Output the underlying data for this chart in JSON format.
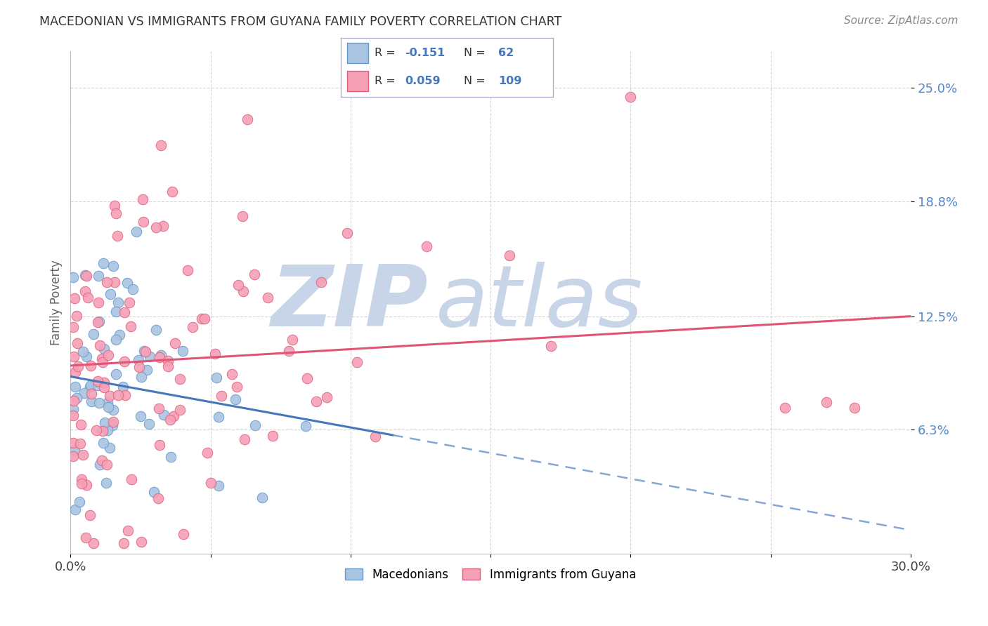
{
  "title": "MACEDONIAN VS IMMIGRANTS FROM GUYANA FAMILY POVERTY CORRELATION CHART",
  "source": "Source: ZipAtlas.com",
  "ylabel": "Family Poverty",
  "ytick_labels": [
    "25.0%",
    "18.8%",
    "12.5%",
    "6.3%"
  ],
  "ytick_values": [
    0.25,
    0.188,
    0.125,
    0.063
  ],
  "xlim": [
    0.0,
    0.3
  ],
  "ylim": [
    -0.005,
    0.27
  ],
  "macedonian_color": "#aac4e2",
  "macedonian_edge_color": "#6699cc",
  "guyana_color": "#f5a0b5",
  "guyana_edge_color": "#e06080",
  "macedonian_line_color": "#4477bb",
  "guyana_line_color": "#e05575",
  "background_color": "#ffffff",
  "grid_color": "#cccccc",
  "watermark_zip_color": "#c8d4e8",
  "watermark_atlas_color": "#c8d4e8",
  "title_color": "#333333",
  "source_color": "#888888",
  "ytick_color": "#5588cc",
  "legend_r1_val": "-0.151",
  "legend_n1_val": "62",
  "legend_r2_val": "0.059",
  "legend_n2_val": "109",
  "mac_trend_x0": 0.0,
  "mac_trend_y0": 0.092,
  "mac_trend_x1": 0.115,
  "mac_trend_y1": 0.06,
  "mac_trend_solid_end": 0.115,
  "mac_trend_dash_x1": 0.3,
  "mac_trend_dash_y1": 0.008,
  "guy_trend_x0": 0.0,
  "guy_trend_y0": 0.098,
  "guy_trend_x1": 0.3,
  "guy_trend_y1": 0.125
}
